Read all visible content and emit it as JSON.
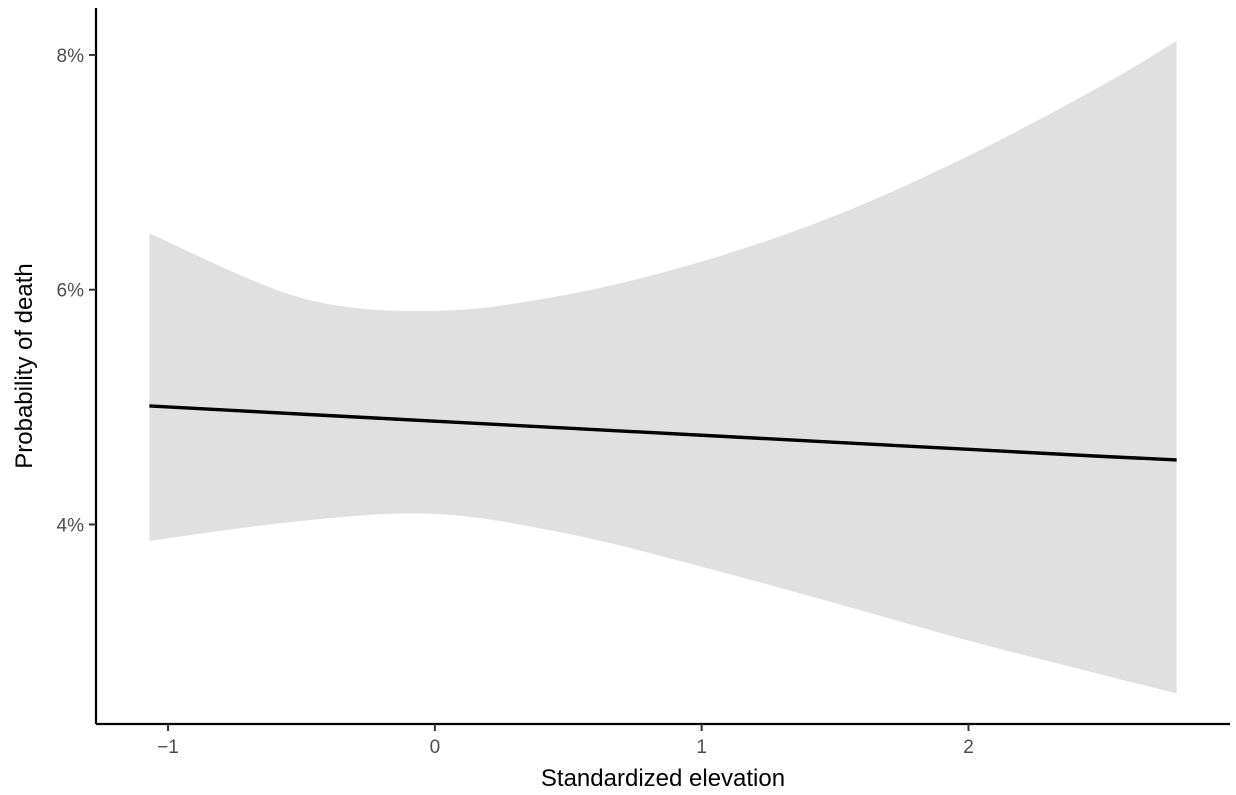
{
  "chart_data": {
    "type": "line",
    "title": "",
    "xlabel": "Standardized elevation",
    "ylabel": "Probability of death",
    "xlim": [
      -1.27,
      2.98
    ],
    "ylim": [
      2.3,
      8.4
    ],
    "x_ticks": [
      {
        "value": -1,
        "label": "−1"
      },
      {
        "value": 0,
        "label": "0"
      },
      {
        "value": 1,
        "label": "1"
      },
      {
        "value": 2,
        "label": "2"
      }
    ],
    "y_ticks": [
      {
        "value": 4,
        "label": "4%"
      },
      {
        "value": 6,
        "label": "6%"
      },
      {
        "value": 8,
        "label": "8%"
      }
    ],
    "grid": false,
    "legend": "none",
    "series": [
      {
        "x": [
          -1.07,
          -0.5,
          0,
          0.5,
          1,
          1.5,
          2,
          2.5,
          2.78
        ],
        "y": [
          5.01,
          4.94,
          4.88,
          4.82,
          4.76,
          4.7,
          4.64,
          4.58,
          4.55
        ],
        "ci_lower": [
          3.86,
          4.03,
          4.09,
          3.92,
          3.64,
          3.33,
          3.01,
          2.72,
          2.56
        ],
        "ci_upper": [
          6.48,
          5.93,
          5.82,
          5.96,
          6.24,
          6.63,
          7.14,
          7.74,
          8.12
        ],
        "color": "#000000",
        "band_color": "#e0e0e0"
      }
    ]
  }
}
